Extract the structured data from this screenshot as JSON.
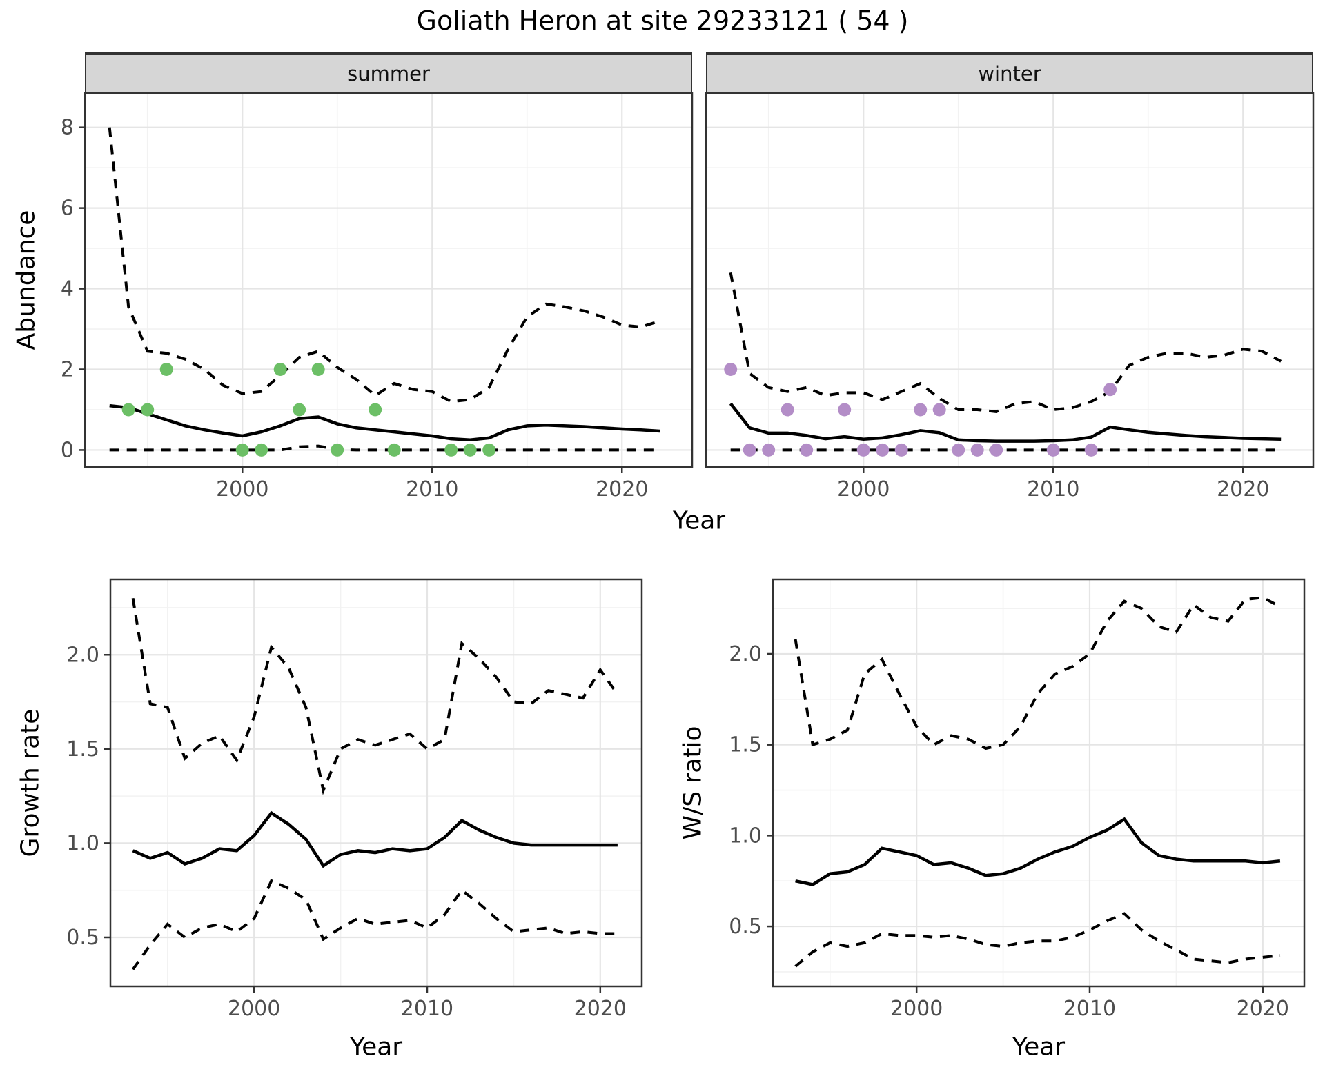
{
  "title": "Goliath Heron at site 29233121 ( 54 )",
  "colors": {
    "summer_points": "#6cbf66",
    "winter_points": "#b38dc7",
    "line": "#000000",
    "grid_major": "#e5e5e5",
    "grid_minor": "#f2f2f2",
    "panel_border": "#333333",
    "strip_fill": "#d6d6d6",
    "tick_label": "#4d4d4d"
  },
  "chart_data": [
    {
      "id": "abundance-summer",
      "type": "line",
      "facet_label": "summer",
      "ylabel": "Abundance",
      "xlabel": "Year",
      "xlim": [
        1991.7,
        2023.7
      ],
      "ylim": [
        -0.42,
        8.85
      ],
      "xticks": [
        2000,
        2010,
        2020
      ],
      "xtick_labels": [
        "2000",
        "2010",
        "2020"
      ],
      "xminor": [
        1995,
        2005,
        2015
      ],
      "yticks": [
        0,
        2,
        4,
        6,
        8
      ],
      "ytick_labels": [
        "0",
        "2",
        "4",
        "6",
        "8"
      ],
      "yminor": [
        1,
        3,
        5,
        7
      ],
      "x": [
        1993,
        1994,
        1995,
        1996,
        1997,
        1998,
        1999,
        2000,
        2001,
        2002,
        2003,
        2004,
        2005,
        2006,
        2007,
        2008,
        2009,
        2010,
        2011,
        2012,
        2013,
        2014,
        2015,
        2016,
        2017,
        2018,
        2019,
        2020,
        2021,
        2022
      ],
      "series": [
        {
          "name": "lower-ci",
          "style": "dashed",
          "values": [
            0,
            0,
            0,
            0,
            0,
            0,
            0,
            0,
            0,
            0,
            0.08,
            0.1,
            0.02,
            0,
            0,
            0,
            0,
            0,
            0,
            0,
            0,
            0,
            0,
            0,
            0,
            0,
            0,
            0,
            0,
            0
          ]
        },
        {
          "name": "upper-ci",
          "style": "dashed",
          "values": [
            8.0,
            3.55,
            2.45,
            2.4,
            2.25,
            2.0,
            1.6,
            1.4,
            1.45,
            1.85,
            2.3,
            2.45,
            2.05,
            1.75,
            1.35,
            1.65,
            1.5,
            1.45,
            1.2,
            1.25,
            1.55,
            2.5,
            3.3,
            3.62,
            3.55,
            3.45,
            3.3,
            3.1,
            3.05,
            3.2
          ]
        },
        {
          "name": "median",
          "style": "solid",
          "values": [
            1.1,
            1.05,
            0.9,
            0.75,
            0.6,
            0.5,
            0.42,
            0.35,
            0.45,
            0.6,
            0.78,
            0.82,
            0.65,
            0.55,
            0.5,
            0.45,
            0.4,
            0.35,
            0.28,
            0.25,
            0.3,
            0.5,
            0.6,
            0.62,
            0.6,
            0.58,
            0.55,
            0.52,
            0.5,
            0.47
          ]
        }
      ],
      "points": {
        "color": "#6cbf66",
        "data": [
          [
            1994,
            1
          ],
          [
            1995,
            1
          ],
          [
            1996,
            2
          ],
          [
            2000,
            0
          ],
          [
            2001,
            0
          ],
          [
            2002,
            2
          ],
          [
            2003,
            1
          ],
          [
            2004,
            2
          ],
          [
            2005,
            0
          ],
          [
            2007,
            1
          ],
          [
            2008,
            0
          ],
          [
            2011,
            0
          ],
          [
            2012,
            0
          ],
          [
            2013,
            0
          ]
        ]
      }
    },
    {
      "id": "abundance-winter",
      "type": "line",
      "facet_label": "winter",
      "ylabel": "Abundance",
      "xlabel": "Year",
      "xlim": [
        1991.7,
        2023.7
      ],
      "ylim": [
        -0.42,
        8.85
      ],
      "xticks": [
        2000,
        2010,
        2020
      ],
      "xtick_labels": [
        "2000",
        "2010",
        "2020"
      ],
      "xminor": [
        1995,
        2005,
        2015
      ],
      "yticks": [
        0,
        2,
        4,
        6,
        8
      ],
      "ytick_labels": [
        "0",
        "2",
        "4",
        "6",
        "8"
      ],
      "yminor": [
        1,
        3,
        5,
        7
      ],
      "x": [
        1993,
        1994,
        1995,
        1996,
        1997,
        1998,
        1999,
        2000,
        2001,
        2002,
        2003,
        2004,
        2005,
        2006,
        2007,
        2008,
        2009,
        2010,
        2011,
        2012,
        2013,
        2014,
        2015,
        2016,
        2017,
        2018,
        2019,
        2020,
        2021,
        2022
      ],
      "series": [
        {
          "name": "lower-ci",
          "style": "dashed",
          "values": [
            0,
            0,
            0,
            0,
            0,
            0,
            0,
            0,
            0,
            0,
            0,
            0,
            0,
            0,
            0,
            0,
            0,
            0,
            0,
            0,
            0,
            0,
            0,
            0,
            0,
            0,
            0,
            0,
            0,
            0
          ]
        },
        {
          "name": "upper-ci",
          "style": "dashed",
          "values": [
            4.4,
            1.9,
            1.55,
            1.45,
            1.55,
            1.35,
            1.42,
            1.42,
            1.25,
            1.45,
            1.65,
            1.28,
            1.0,
            1.0,
            0.95,
            1.15,
            1.2,
            1.0,
            1.05,
            1.2,
            1.45,
            2.1,
            2.3,
            2.4,
            2.4,
            2.3,
            2.35,
            2.5,
            2.45,
            2.2
          ]
        },
        {
          "name": "median",
          "style": "solid",
          "values": [
            1.15,
            0.55,
            0.42,
            0.42,
            0.36,
            0.28,
            0.33,
            0.27,
            0.3,
            0.38,
            0.48,
            0.43,
            0.25,
            0.23,
            0.22,
            0.22,
            0.22,
            0.23,
            0.25,
            0.32,
            0.57,
            0.5,
            0.44,
            0.4,
            0.36,
            0.33,
            0.31,
            0.29,
            0.28,
            0.27
          ]
        }
      ],
      "points": {
        "color": "#b38dc7",
        "data": [
          [
            1993,
            2
          ],
          [
            1994,
            0
          ],
          [
            1995,
            0
          ],
          [
            1996,
            1
          ],
          [
            1997,
            0
          ],
          [
            1999,
            1
          ],
          [
            2000,
            0
          ],
          [
            2001,
            0
          ],
          [
            2002,
            0
          ],
          [
            2003,
            1
          ],
          [
            2004,
            1
          ],
          [
            2005,
            0
          ],
          [
            2006,
            0
          ],
          [
            2007,
            0
          ],
          [
            2010,
            0
          ],
          [
            2012,
            0
          ],
          [
            2013,
            1.5
          ]
        ]
      }
    },
    {
      "id": "growth-rate",
      "type": "line",
      "facet_label": "",
      "ylabel": "Growth rate",
      "xlabel": "Year",
      "xlim": [
        1991.7,
        2022.4
      ],
      "ylim": [
        0.24,
        2.4
      ],
      "xticks": [
        2000,
        2010,
        2020
      ],
      "xtick_labels": [
        "2000",
        "2010",
        "2020"
      ],
      "xminor": [
        1995,
        2005,
        2015
      ],
      "yticks": [
        0.5,
        1.0,
        1.5,
        2.0
      ],
      "ytick_labels": [
        "0.5",
        "1.0",
        "1.5",
        "2.0"
      ],
      "yminor": [
        0.75,
        1.25,
        1.75,
        2.25
      ],
      "x": [
        1993,
        1994,
        1995,
        1996,
        1997,
        1998,
        1999,
        2000,
        2001,
        2002,
        2003,
        2004,
        2005,
        2006,
        2007,
        2008,
        2009,
        2010,
        2011,
        2012,
        2013,
        2014,
        2015,
        2016,
        2017,
        2018,
        2019,
        2020,
        2021
      ],
      "series": [
        {
          "name": "lower-ci",
          "style": "dashed",
          "values": [
            0.33,
            0.46,
            0.57,
            0.5,
            0.55,
            0.57,
            0.53,
            0.6,
            0.8,
            0.76,
            0.7,
            0.49,
            0.55,
            0.6,
            0.57,
            0.58,
            0.59,
            0.55,
            0.62,
            0.75,
            0.68,
            0.6,
            0.53,
            0.54,
            0.55,
            0.52,
            0.53,
            0.52,
            0.52
          ]
        },
        {
          "name": "upper-ci",
          "style": "dashed",
          "values": [
            2.3,
            1.74,
            1.72,
            1.45,
            1.53,
            1.57,
            1.44,
            1.67,
            2.04,
            1.93,
            1.72,
            1.28,
            1.5,
            1.55,
            1.52,
            1.55,
            1.58,
            1.5,
            1.55,
            2.06,
            1.98,
            1.88,
            1.75,
            1.74,
            1.81,
            1.79,
            1.77,
            1.92,
            1.79
          ]
        },
        {
          "name": "median",
          "style": "solid",
          "values": [
            0.96,
            0.92,
            0.95,
            0.89,
            0.92,
            0.97,
            0.96,
            1.04,
            1.16,
            1.1,
            1.02,
            0.88,
            0.94,
            0.96,
            0.95,
            0.97,
            0.96,
            0.97,
            1.03,
            1.12,
            1.07,
            1.03,
            1.0,
            0.99,
            0.99,
            0.99,
            0.99,
            0.99,
            0.99
          ]
        }
      ],
      "points": null
    },
    {
      "id": "ws-ratio",
      "type": "line",
      "facet_label": "",
      "ylabel": "W/S ratio",
      "xlabel": "Year",
      "xlim": [
        1991.7,
        2022.4
      ],
      "ylim": [
        0.17,
        2.41
      ],
      "xticks": [
        2000,
        2010,
        2020
      ],
      "xtick_labels": [
        "2000",
        "2010",
        "2020"
      ],
      "xminor": [
        1995,
        2005,
        2015
      ],
      "yticks": [
        0.5,
        1.0,
        1.5,
        2.0
      ],
      "ytick_labels": [
        "0.5",
        "1.0",
        "1.5",
        "2.0"
      ],
      "yminor": [
        0.25,
        0.75,
        1.25,
        1.75,
        2.25
      ],
      "x": [
        1993,
        1994,
        1995,
        1996,
        1997,
        1998,
        1999,
        2000,
        2001,
        2002,
        2003,
        2004,
        2005,
        2006,
        2007,
        2008,
        2009,
        2010,
        2011,
        2012,
        2013,
        2014,
        2015,
        2016,
        2017,
        2018,
        2019,
        2020,
        2021
      ],
      "series": [
        {
          "name": "lower-ci",
          "style": "dashed",
          "values": [
            0.28,
            0.36,
            0.41,
            0.39,
            0.41,
            0.46,
            0.45,
            0.45,
            0.44,
            0.45,
            0.43,
            0.4,
            0.39,
            0.41,
            0.42,
            0.42,
            0.44,
            0.48,
            0.53,
            0.57,
            0.48,
            0.42,
            0.37,
            0.32,
            0.31,
            0.3,
            0.32,
            0.33,
            0.34
          ]
        },
        {
          "name": "upper-ci",
          "style": "dashed",
          "values": [
            2.08,
            1.5,
            1.53,
            1.58,
            1.89,
            1.97,
            1.78,
            1.6,
            1.5,
            1.55,
            1.53,
            1.48,
            1.5,
            1.6,
            1.78,
            1.89,
            1.93,
            2.0,
            2.18,
            2.29,
            2.25,
            2.15,
            2.12,
            2.27,
            2.2,
            2.18,
            2.3,
            2.31,
            2.26
          ]
        },
        {
          "name": "median",
          "style": "solid",
          "values": [
            0.75,
            0.73,
            0.79,
            0.8,
            0.84,
            0.93,
            0.91,
            0.89,
            0.84,
            0.85,
            0.82,
            0.78,
            0.79,
            0.82,
            0.87,
            0.91,
            0.94,
            0.99,
            1.03,
            1.09,
            0.96,
            0.89,
            0.87,
            0.86,
            0.86,
            0.86,
            0.86,
            0.85,
            0.86
          ]
        }
      ],
      "points": null
    }
  ]
}
